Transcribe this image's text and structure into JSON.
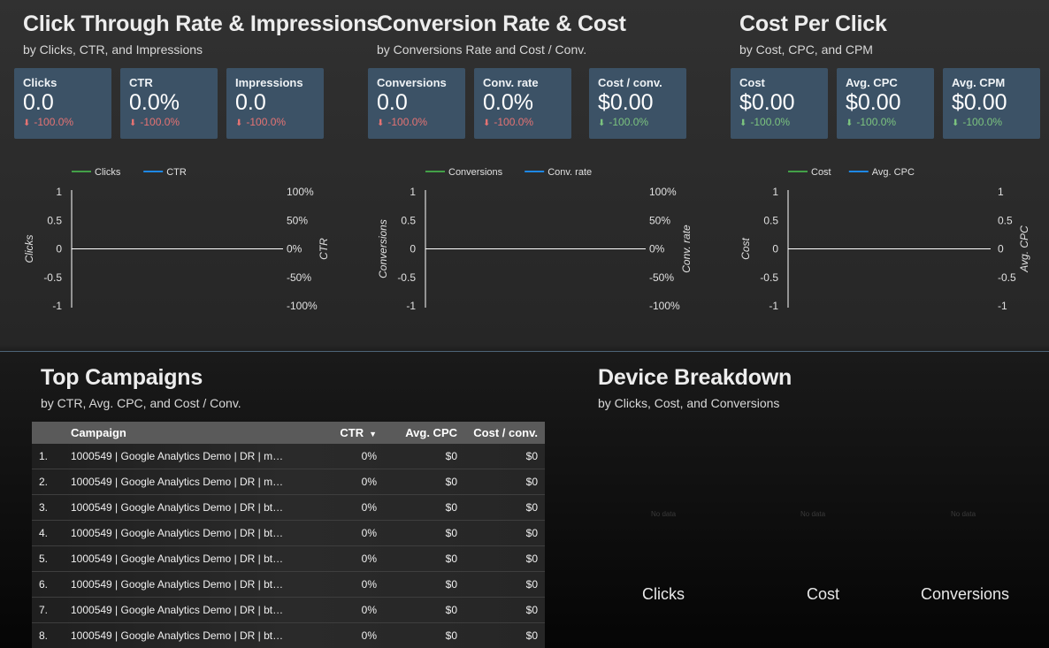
{
  "sections": {
    "ctr": {
      "title": "Click Through Rate & Impressions",
      "subtitle": "by Clicks, CTR, and Impressions"
    },
    "conv": {
      "title": "Conversion Rate & Cost",
      "subtitle": "by Conversions Rate and Cost / Conv."
    },
    "cpc": {
      "title": "Cost Per Click",
      "subtitle": "by Cost, CPC, and CPM"
    },
    "campaigns": {
      "title": "Top Campaigns",
      "subtitle": "by CTR, Avg. CPC, and Cost / Conv."
    },
    "device": {
      "title": "Device Breakdown",
      "subtitle": "by Clicks, Cost, and Conversions"
    }
  },
  "kpis": [
    {
      "label": "Clicks",
      "value": "0.0",
      "delta": "-100.0%",
      "trend": "neg",
      "color": "#e57373"
    },
    {
      "label": "CTR",
      "value": "0.0%",
      "delta": "-100.0%",
      "trend": "neg",
      "color": "#e57373"
    },
    {
      "label": "Impressions",
      "value": "0.0",
      "delta": "-100.0%",
      "trend": "neg",
      "color": "#e57373"
    },
    {
      "label": "Conversions",
      "value": "0.0",
      "delta": "-100.0%",
      "trend": "neg",
      "color": "#e57373"
    },
    {
      "label": "Conv. rate",
      "value": "0.0%",
      "delta": "-100.0%",
      "trend": "neg",
      "color": "#e57373"
    },
    {
      "label": "Cost / conv.",
      "value": "$0.00",
      "delta": "-100.0%",
      "trend": "pos",
      "color": "#7cc47f"
    },
    {
      "label": "Cost",
      "value": "$0.00",
      "delta": "-100.0%",
      "trend": "pos",
      "color": "#7cc47f"
    },
    {
      "label": "Avg. CPC",
      "value": "$0.00",
      "delta": "-100.0%",
      "trend": "pos",
      "color": "#7cc47f"
    },
    {
      "label": "Avg. CPM",
      "value": "$0.00",
      "delta": "-100.0%",
      "trend": "pos",
      "color": "#7cc47f"
    }
  ],
  "chart_data": [
    {
      "type": "line",
      "series": [
        {
          "name": "Clicks",
          "color": "#43a047",
          "values": []
        },
        {
          "name": "CTR",
          "color": "#1e88e5",
          "values": []
        }
      ],
      "ylabel": "Clicks",
      "y2label": "CTR",
      "y_ticks": [
        "1",
        "0.5",
        "0",
        "-0.5",
        "-1"
      ],
      "y2_ticks": [
        "100%",
        "50%",
        "0%",
        "-50%",
        "-100%"
      ],
      "ylim": [
        -1,
        1
      ]
    },
    {
      "type": "line",
      "series": [
        {
          "name": "Conversions",
          "color": "#43a047",
          "values": []
        },
        {
          "name": "Conv. rate",
          "color": "#1e88e5",
          "values": []
        }
      ],
      "ylabel": "Conversions",
      "y2label": "Conv. rate",
      "y_ticks": [
        "1",
        "0.5",
        "0",
        "-0.5",
        "-1"
      ],
      "y2_ticks": [
        "100%",
        "50%",
        "0%",
        "-50%",
        "-100%"
      ],
      "ylim": [
        -1,
        1
      ]
    },
    {
      "type": "line",
      "series": [
        {
          "name": "Cost",
          "color": "#43a047",
          "values": []
        },
        {
          "name": "Avg. CPC",
          "color": "#1e88e5",
          "values": []
        }
      ],
      "ylabel": "Cost",
      "y2label": "Avg. CPC",
      "y_ticks": [
        "1",
        "0.5",
        "0",
        "-0.5",
        "-1"
      ],
      "y2_ticks": [
        "1",
        "0.5",
        "0",
        "-0.5",
        "-1"
      ],
      "ylim": [
        -1,
        1
      ]
    }
  ],
  "table": {
    "columns": [
      "Campaign",
      "CTR",
      "Avg. CPC",
      "Cost / conv."
    ],
    "sort_icon": "sort-descending-icon",
    "rows": [
      {
        "idx": "1.",
        "campaign": "1000549 | Google Analytics Demo | DR | ma…",
        "ctr": "0%",
        "cpc": "$0",
        "cost": "$0"
      },
      {
        "idx": "2.",
        "campaign": "1000549 | Google Analytics Demo | DR | ma…",
        "ctr": "0%",
        "cpc": "$0",
        "cost": "$0"
      },
      {
        "idx": "3.",
        "campaign": "1000549 | Google Analytics Demo | DR | btu…",
        "ctr": "0%",
        "cpc": "$0",
        "cost": "$0"
      },
      {
        "idx": "4.",
        "campaign": "1000549 | Google Analytics Demo | DR | btu…",
        "ctr": "0%",
        "cpc": "$0",
        "cost": "$0"
      },
      {
        "idx": "5.",
        "campaign": "1000549 | Google Analytics Demo | DR | btu…",
        "ctr": "0%",
        "cpc": "$0",
        "cost": "$0"
      },
      {
        "idx": "6.",
        "campaign": "1000549 | Google Analytics Demo | DR | btu…",
        "ctr": "0%",
        "cpc": "$0",
        "cost": "$0"
      },
      {
        "idx": "7.",
        "campaign": "1000549 | Google Analytics Demo | DR | btu…",
        "ctr": "0%",
        "cpc": "$0",
        "cost": "$0"
      },
      {
        "idx": "8.",
        "campaign": "1000549 | Google Analytics Demo | DR | btu…",
        "ctr": "0%",
        "cpc": "$0",
        "cost": "$0"
      }
    ]
  },
  "device": {
    "charts": [
      {
        "label": "Clicks",
        "nodata": "No data"
      },
      {
        "label": "Cost",
        "nodata": "No data"
      },
      {
        "label": "Conversions",
        "nodata": "No data"
      }
    ]
  }
}
